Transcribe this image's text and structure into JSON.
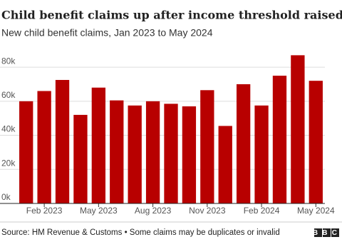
{
  "chart_data": {
    "type": "bar",
    "title": "Child benefit claims up after income threshold raised",
    "subtitle": "New child benefit claims, Jan 2023 to May 2024",
    "categories": [
      null,
      "Feb 2023",
      null,
      null,
      "May 2023",
      null,
      null,
      "Aug 2023",
      null,
      null,
      "Nov 2023",
      null,
      null,
      "Feb 2024",
      null,
      null,
      "May 2024"
    ],
    "values": [
      60000,
      66000,
      72500,
      52000,
      68000,
      60500,
      57500,
      60000,
      58500,
      57000,
      66500,
      45500,
      70000,
      57500,
      75000,
      87000,
      72000
    ],
    "color": "#b80000",
    "ylim": [
      0,
      88000
    ],
    "yticks": [
      {
        "value": 0,
        "label": "0k"
      },
      {
        "value": 20000,
        "label": "20k"
      },
      {
        "value": 40000,
        "label": "40k"
      },
      {
        "value": 60000,
        "label": "60k"
      },
      {
        "value": 80000,
        "label": "80k"
      }
    ],
    "grid": true,
    "source": "Source: HM Revenue & Customs • Some claims may be duplicates or invalid",
    "logo": "BBC"
  }
}
